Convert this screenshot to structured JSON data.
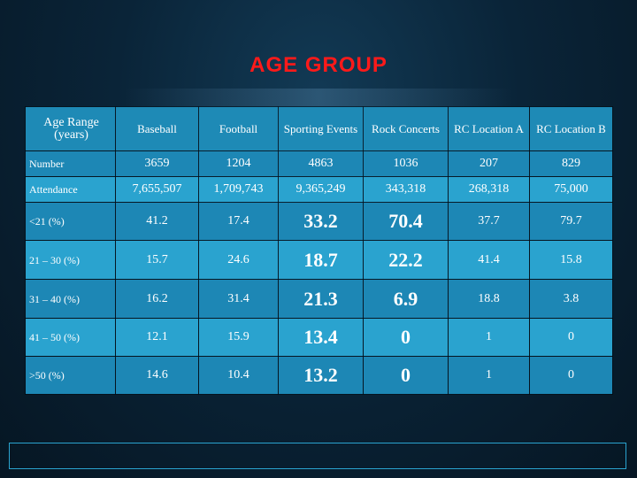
{
  "title": "AGE GROUP",
  "table": {
    "header": [
      "Age Range (years)",
      "Baseball",
      "Football",
      "Sporting Events",
      "Rock Concerts",
      "RC Location A",
      "RC Location B"
    ],
    "rows": [
      {
        "label": "Number",
        "values": [
          "3659",
          "1204",
          "4863",
          "1036",
          "207",
          "829"
        ]
      },
      {
        "label": "Attendance",
        "values": [
          "7,655,507",
          "1,709,743",
          "9,365,249",
          "343,318",
          "268,318",
          "75,000"
        ]
      },
      {
        "label": "<21 (%)",
        "values": [
          "41.2",
          "17.4",
          "33.2",
          "70.4",
          "37.7",
          "79.7"
        ]
      },
      {
        "label": "21 – 30 (%)",
        "values": [
          "15.7",
          "24.6",
          "18.7",
          "22.2",
          "41.4",
          "15.8"
        ]
      },
      {
        "label": "31 – 40 (%)",
        "values": [
          "16.2",
          "31.4",
          "21.3",
          "6.9",
          "18.8",
          "3.8"
        ]
      },
      {
        "label": "41 – 50 (%)",
        "values": [
          "12.1",
          "15.9",
          "13.4",
          "0",
          "1",
          "0"
        ]
      },
      {
        "label": ">50 (%)",
        "values": [
          "14.6",
          "10.4",
          "13.2",
          "0",
          "1",
          "0"
        ]
      }
    ]
  },
  "colors": {
    "title": "#ff1a1a",
    "cell_dark": "#1d87b5",
    "cell_light": "#2aa3cf"
  }
}
